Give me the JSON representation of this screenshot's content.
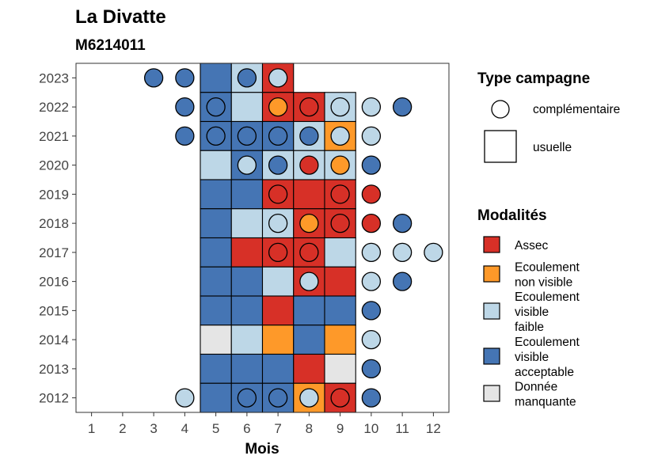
{
  "chart_data": {
    "type": "heatmap",
    "title": "La Divatte",
    "subtitle": "M6214011",
    "xlabel": "Mois",
    "ylabel": "",
    "x_ticks": [
      1,
      2,
      3,
      4,
      5,
      6,
      7,
      8,
      9,
      10,
      11,
      12
    ],
    "xlim": [
      0.5,
      12.5
    ],
    "years": [
      2012,
      2013,
      2014,
      2015,
      2016,
      2017,
      2018,
      2019,
      2020,
      2021,
      2022,
      2023
    ],
    "ylim": [
      2011.5,
      2023.5
    ],
    "grid": false,
    "legend_position": "right",
    "colors": {
      "A": "#d73027",
      "NV": "#fe9929",
      "VF": "#bdd7e7",
      "VA": "#4575b4",
      "ND": "#e5e5e5"
    },
    "legend_shape": {
      "title": "Type campagne",
      "items": [
        {
          "shape": "circle",
          "label": "complémentaire"
        },
        {
          "shape": "square",
          "label": "usuelle"
        }
      ]
    },
    "legend_fill": {
      "title": "Modalités",
      "items": [
        {
          "code": "A",
          "lines": [
            "Assec"
          ]
        },
        {
          "code": "NV",
          "lines": [
            "Ecoulement",
            "non visible"
          ]
        },
        {
          "code": "VF",
          "lines": [
            "Ecoulement",
            "visible",
            "faible"
          ]
        },
        {
          "code": "VA",
          "lines": [
            "Ecoulement",
            "visible",
            "acceptable"
          ]
        },
        {
          "code": "ND",
          "lines": [
            "Donnée",
            "manquante"
          ]
        }
      ]
    },
    "usuelle": [
      {
        "year": 2023,
        "values": {
          "5": "VA",
          "6": "VF",
          "7": "A"
        }
      },
      {
        "year": 2022,
        "values": {
          "5": "VA",
          "6": "VF",
          "7": "A",
          "8": "A",
          "9": "VF"
        }
      },
      {
        "year": 2021,
        "values": {
          "5": "VA",
          "6": "VA",
          "7": "VA",
          "8": "VF",
          "9": "NV"
        }
      },
      {
        "year": 2020,
        "values": {
          "5": "VF",
          "6": "VA",
          "7": "VF",
          "8": "VF",
          "9": "VF"
        }
      },
      {
        "year": 2019,
        "values": {
          "5": "VA",
          "6": "VA",
          "7": "A",
          "8": "A",
          "9": "A"
        }
      },
      {
        "year": 2018,
        "values": {
          "5": "VA",
          "6": "VF",
          "7": "VF",
          "8": "A",
          "9": "A"
        }
      },
      {
        "year": 2017,
        "values": {
          "5": "VA",
          "6": "A",
          "7": "A",
          "8": "A",
          "9": "VF"
        }
      },
      {
        "year": 2016,
        "values": {
          "5": "VA",
          "6": "VA",
          "7": "VF",
          "8": "A",
          "9": "A"
        }
      },
      {
        "year": 2015,
        "values": {
          "5": "VA",
          "6": "VA",
          "7": "A",
          "8": "VA",
          "9": "VA"
        }
      },
      {
        "year": 2014,
        "values": {
          "5": "ND",
          "6": "VF",
          "7": "NV",
          "8": "VA",
          "9": "NV"
        }
      },
      {
        "year": 2013,
        "values": {
          "5": "VA",
          "6": "VA",
          "7": "VA",
          "8": "A",
          "9": "ND"
        }
      },
      {
        "year": 2012,
        "values": {
          "5": "VA",
          "6": "VA",
          "7": "VA",
          "8": "NV",
          "9": "A"
        }
      }
    ],
    "complementaire": [
      {
        "year": 2023,
        "values": {
          "3": "VA",
          "4": "VA",
          "6": "VA",
          "7": "VF"
        }
      },
      {
        "year": 2022,
        "values": {
          "4": "VA",
          "5": "VA",
          "7": "NV",
          "8": "A",
          "9": "VF",
          "10": "VF",
          "11": "VA"
        }
      },
      {
        "year": 2021,
        "values": {
          "4": "VA",
          "5": "VA",
          "6": "VA",
          "7": "VA",
          "8": "VA",
          "9": "VF",
          "10": "VF"
        }
      },
      {
        "year": 2020,
        "values": {
          "6": "VF",
          "7": "VA",
          "8": "A",
          "9": "NV",
          "10": "VA"
        }
      },
      {
        "year": 2019,
        "values": {
          "7": "A",
          "9": "A",
          "10": "A"
        }
      },
      {
        "year": 2018,
        "values": {
          "7": "VF",
          "8": "NV",
          "9": "A",
          "10": "A",
          "11": "VA"
        }
      },
      {
        "year": 2017,
        "values": {
          "7": "A",
          "8": "A",
          "10": "VF",
          "11": "VF",
          "12": "VF"
        }
      },
      {
        "year": 2016,
        "values": {
          "8": "VF",
          "10": "VF",
          "11": "VA"
        }
      },
      {
        "year": 2015,
        "values": {
          "10": "VA"
        }
      },
      {
        "year": 2014,
        "values": {
          "10": "VF"
        }
      },
      {
        "year": 2013,
        "values": {
          "10": "VA"
        }
      },
      {
        "year": 2012,
        "values": {
          "4": "VF",
          "6": "VA",
          "7": "VA",
          "8": "VF",
          "9": "A",
          "10": "VA"
        }
      }
    ]
  }
}
